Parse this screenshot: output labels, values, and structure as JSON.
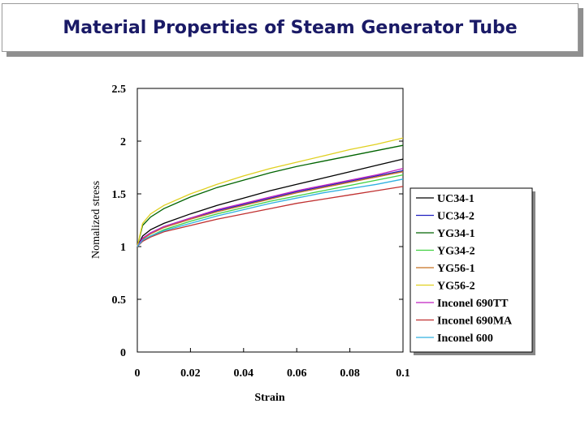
{
  "slide": {
    "title": "Material Properties of Steam Generator Tube"
  },
  "chart_data": {
    "type": "line",
    "title": "",
    "xlabel": "Strain",
    "ylabel": "Nomalized stress",
    "xlim": [
      0,
      0.1
    ],
    "ylim": [
      0,
      2.5
    ],
    "xticks": [
      "0",
      "0.02",
      "0.04",
      "0.06",
      "0.08",
      "0.1"
    ],
    "yticks": [
      "0",
      "0.5",
      "1",
      "1.5",
      "2",
      "2.5"
    ],
    "legend_position": "right",
    "x": [
      0,
      0.002,
      0.005,
      0.01,
      0.02,
      0.03,
      0.04,
      0.05,
      0.06,
      0.07,
      0.08,
      0.09,
      0.1
    ],
    "series": [
      {
        "name": "UC34-1",
        "color": "#000000",
        "values": [
          1.0,
          1.1,
          1.16,
          1.22,
          1.31,
          1.39,
          1.46,
          1.53,
          1.59,
          1.65,
          1.71,
          1.77,
          1.83
        ]
      },
      {
        "name": "UC34-2",
        "color": "#2020c0",
        "values": [
          1.0,
          1.08,
          1.13,
          1.19,
          1.27,
          1.34,
          1.4,
          1.46,
          1.52,
          1.57,
          1.62,
          1.67,
          1.72
        ]
      },
      {
        "name": "YG34-1",
        "color": "#006400",
        "values": [
          1.0,
          1.2,
          1.28,
          1.36,
          1.47,
          1.56,
          1.63,
          1.7,
          1.76,
          1.81,
          1.86,
          1.91,
          1.96
        ]
      },
      {
        "name": "YG34-2",
        "color": "#40d040",
        "values": [
          1.0,
          1.06,
          1.1,
          1.16,
          1.24,
          1.31,
          1.37,
          1.43,
          1.48,
          1.53,
          1.58,
          1.63,
          1.68
        ]
      },
      {
        "name": "YG56-1",
        "color": "#c87020",
        "values": [
          1.0,
          1.07,
          1.12,
          1.18,
          1.26,
          1.33,
          1.39,
          1.45,
          1.51,
          1.56,
          1.61,
          1.66,
          1.71
        ]
      },
      {
        "name": "YG56-2",
        "color": "#e0d020",
        "values": [
          1.0,
          1.22,
          1.31,
          1.39,
          1.5,
          1.59,
          1.67,
          1.74,
          1.8,
          1.86,
          1.92,
          1.97,
          2.03
        ]
      },
      {
        "name": "Inconel 690TT",
        "color": "#c020c0",
        "values": [
          1.0,
          1.08,
          1.13,
          1.19,
          1.27,
          1.35,
          1.41,
          1.47,
          1.53,
          1.58,
          1.63,
          1.68,
          1.74
        ]
      },
      {
        "name": "Inconel 690MA",
        "color": "#c03030",
        "values": [
          1.0,
          1.05,
          1.09,
          1.14,
          1.2,
          1.26,
          1.31,
          1.36,
          1.41,
          1.45,
          1.49,
          1.53,
          1.57
        ]
      },
      {
        "name": "Inconel 600",
        "color": "#30b0e0",
        "values": [
          1.0,
          1.06,
          1.1,
          1.15,
          1.22,
          1.29,
          1.35,
          1.41,
          1.46,
          1.51,
          1.55,
          1.59,
          1.64
        ]
      }
    ]
  }
}
